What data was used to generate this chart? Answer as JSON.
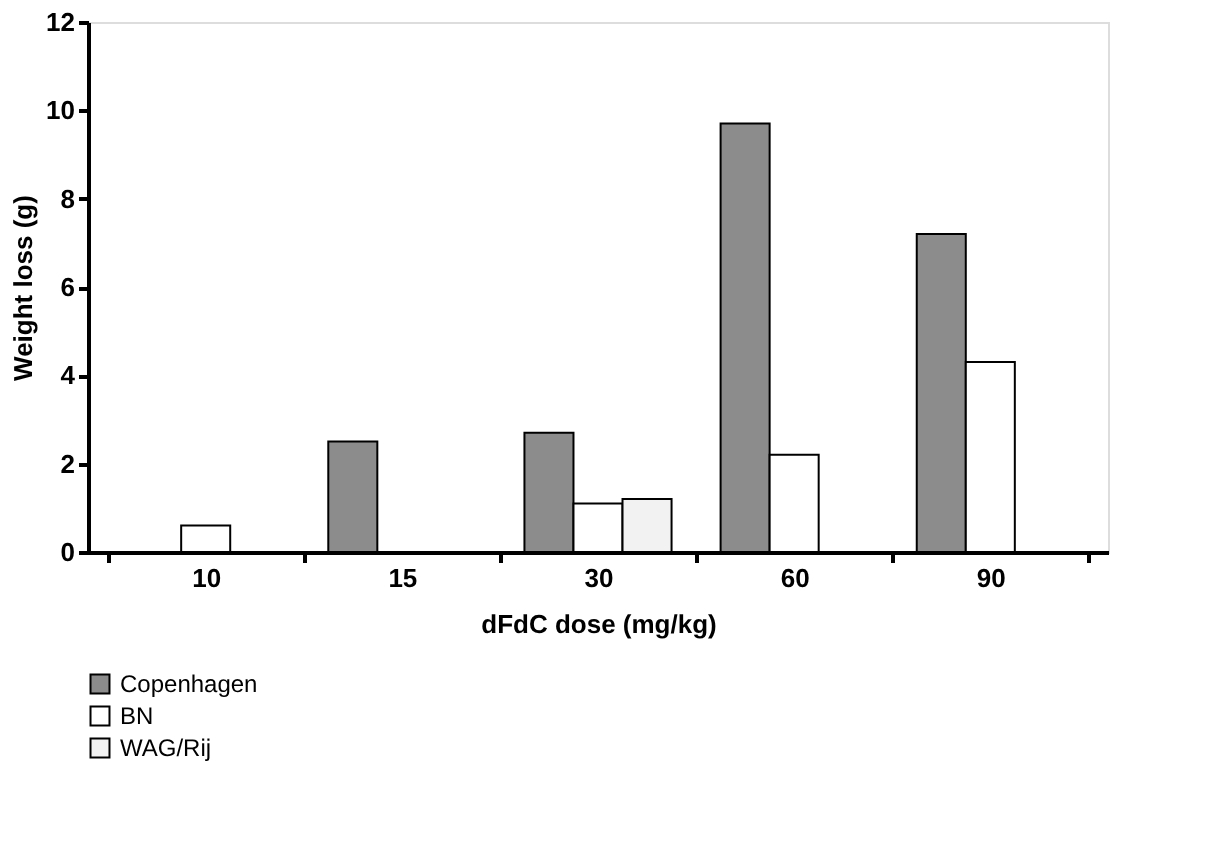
{
  "chart_data": {
    "type": "bar",
    "xlabel": "dFdC dose (mg/kg)",
    "ylabel": "Weight loss (g)",
    "categories": [
      "10",
      "15",
      "30",
      "60",
      "90"
    ],
    "series": [
      {
        "name": "Copenhagen",
        "color": "#8c8c8c",
        "values": [
          null,
          2.5,
          2.7,
          9.7,
          7.2
        ]
      },
      {
        "name": "BN",
        "color": "#ffffff",
        "values": [
          0.6,
          null,
          1.1,
          2.2,
          4.3
        ]
      },
      {
        "name": "WAG/Rij",
        "color": "#f2f2f2",
        "values": [
          null,
          null,
          1.2,
          null,
          null
        ]
      }
    ],
    "ylim": [
      0,
      12
    ],
    "yticks": [
      0,
      2,
      4,
      6,
      8,
      10,
      12
    ],
    "grid": false,
    "legend": "bottom left"
  }
}
